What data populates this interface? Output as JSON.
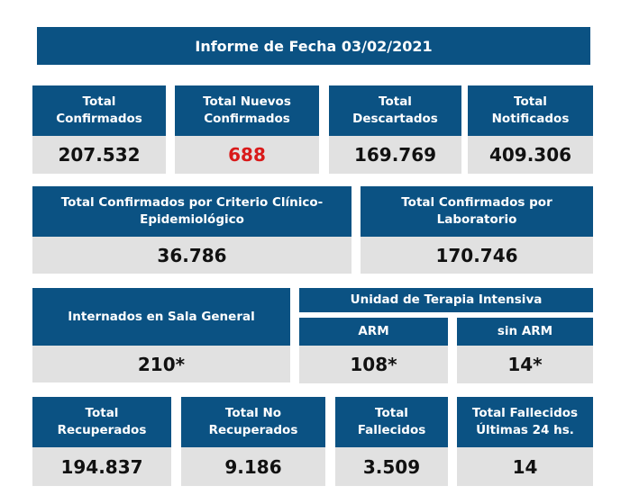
{
  "title": "Informe de Fecha 03/02/2021",
  "row1": [
    {
      "label": "Total Confirmados",
      "value": "207.532"
    },
    {
      "label": "Total Nuevos Confirmados",
      "value": "688"
    },
    {
      "label": "Total Descartados",
      "value": "169.769"
    },
    {
      "label": "Total Notificados",
      "value": "409.306"
    }
  ],
  "row2": [
    {
      "label": "Total Confirmados por Criterio Clínico-Epidemiológico",
      "value": "36.786"
    },
    {
      "label": "Total Confirmados por Laboratorio",
      "value": "170.746"
    }
  ],
  "row3": {
    "sala": {
      "label": "Internados en Sala General",
      "value": "210*"
    },
    "uti_label": "Unidad de Terapia Intensiva",
    "arm": {
      "label": "ARM",
      "value": "108*"
    },
    "sin_arm": {
      "label": "sin ARM",
      "value": "14*"
    }
  },
  "row4": [
    {
      "label": "Total Recuperados",
      "value": "194.837"
    },
    {
      "label": "Total No Recuperados",
      "value": "9.186"
    },
    {
      "label": "Total Fallecidos",
      "value": "3.509"
    },
    {
      "label": "Total Fallecidos Últimas 24 hs.",
      "value": "14"
    }
  ],
  "colors": {
    "header": "#0b5283",
    "value_bg": "#e1e1e1",
    "highlight": "#d91a1a"
  }
}
